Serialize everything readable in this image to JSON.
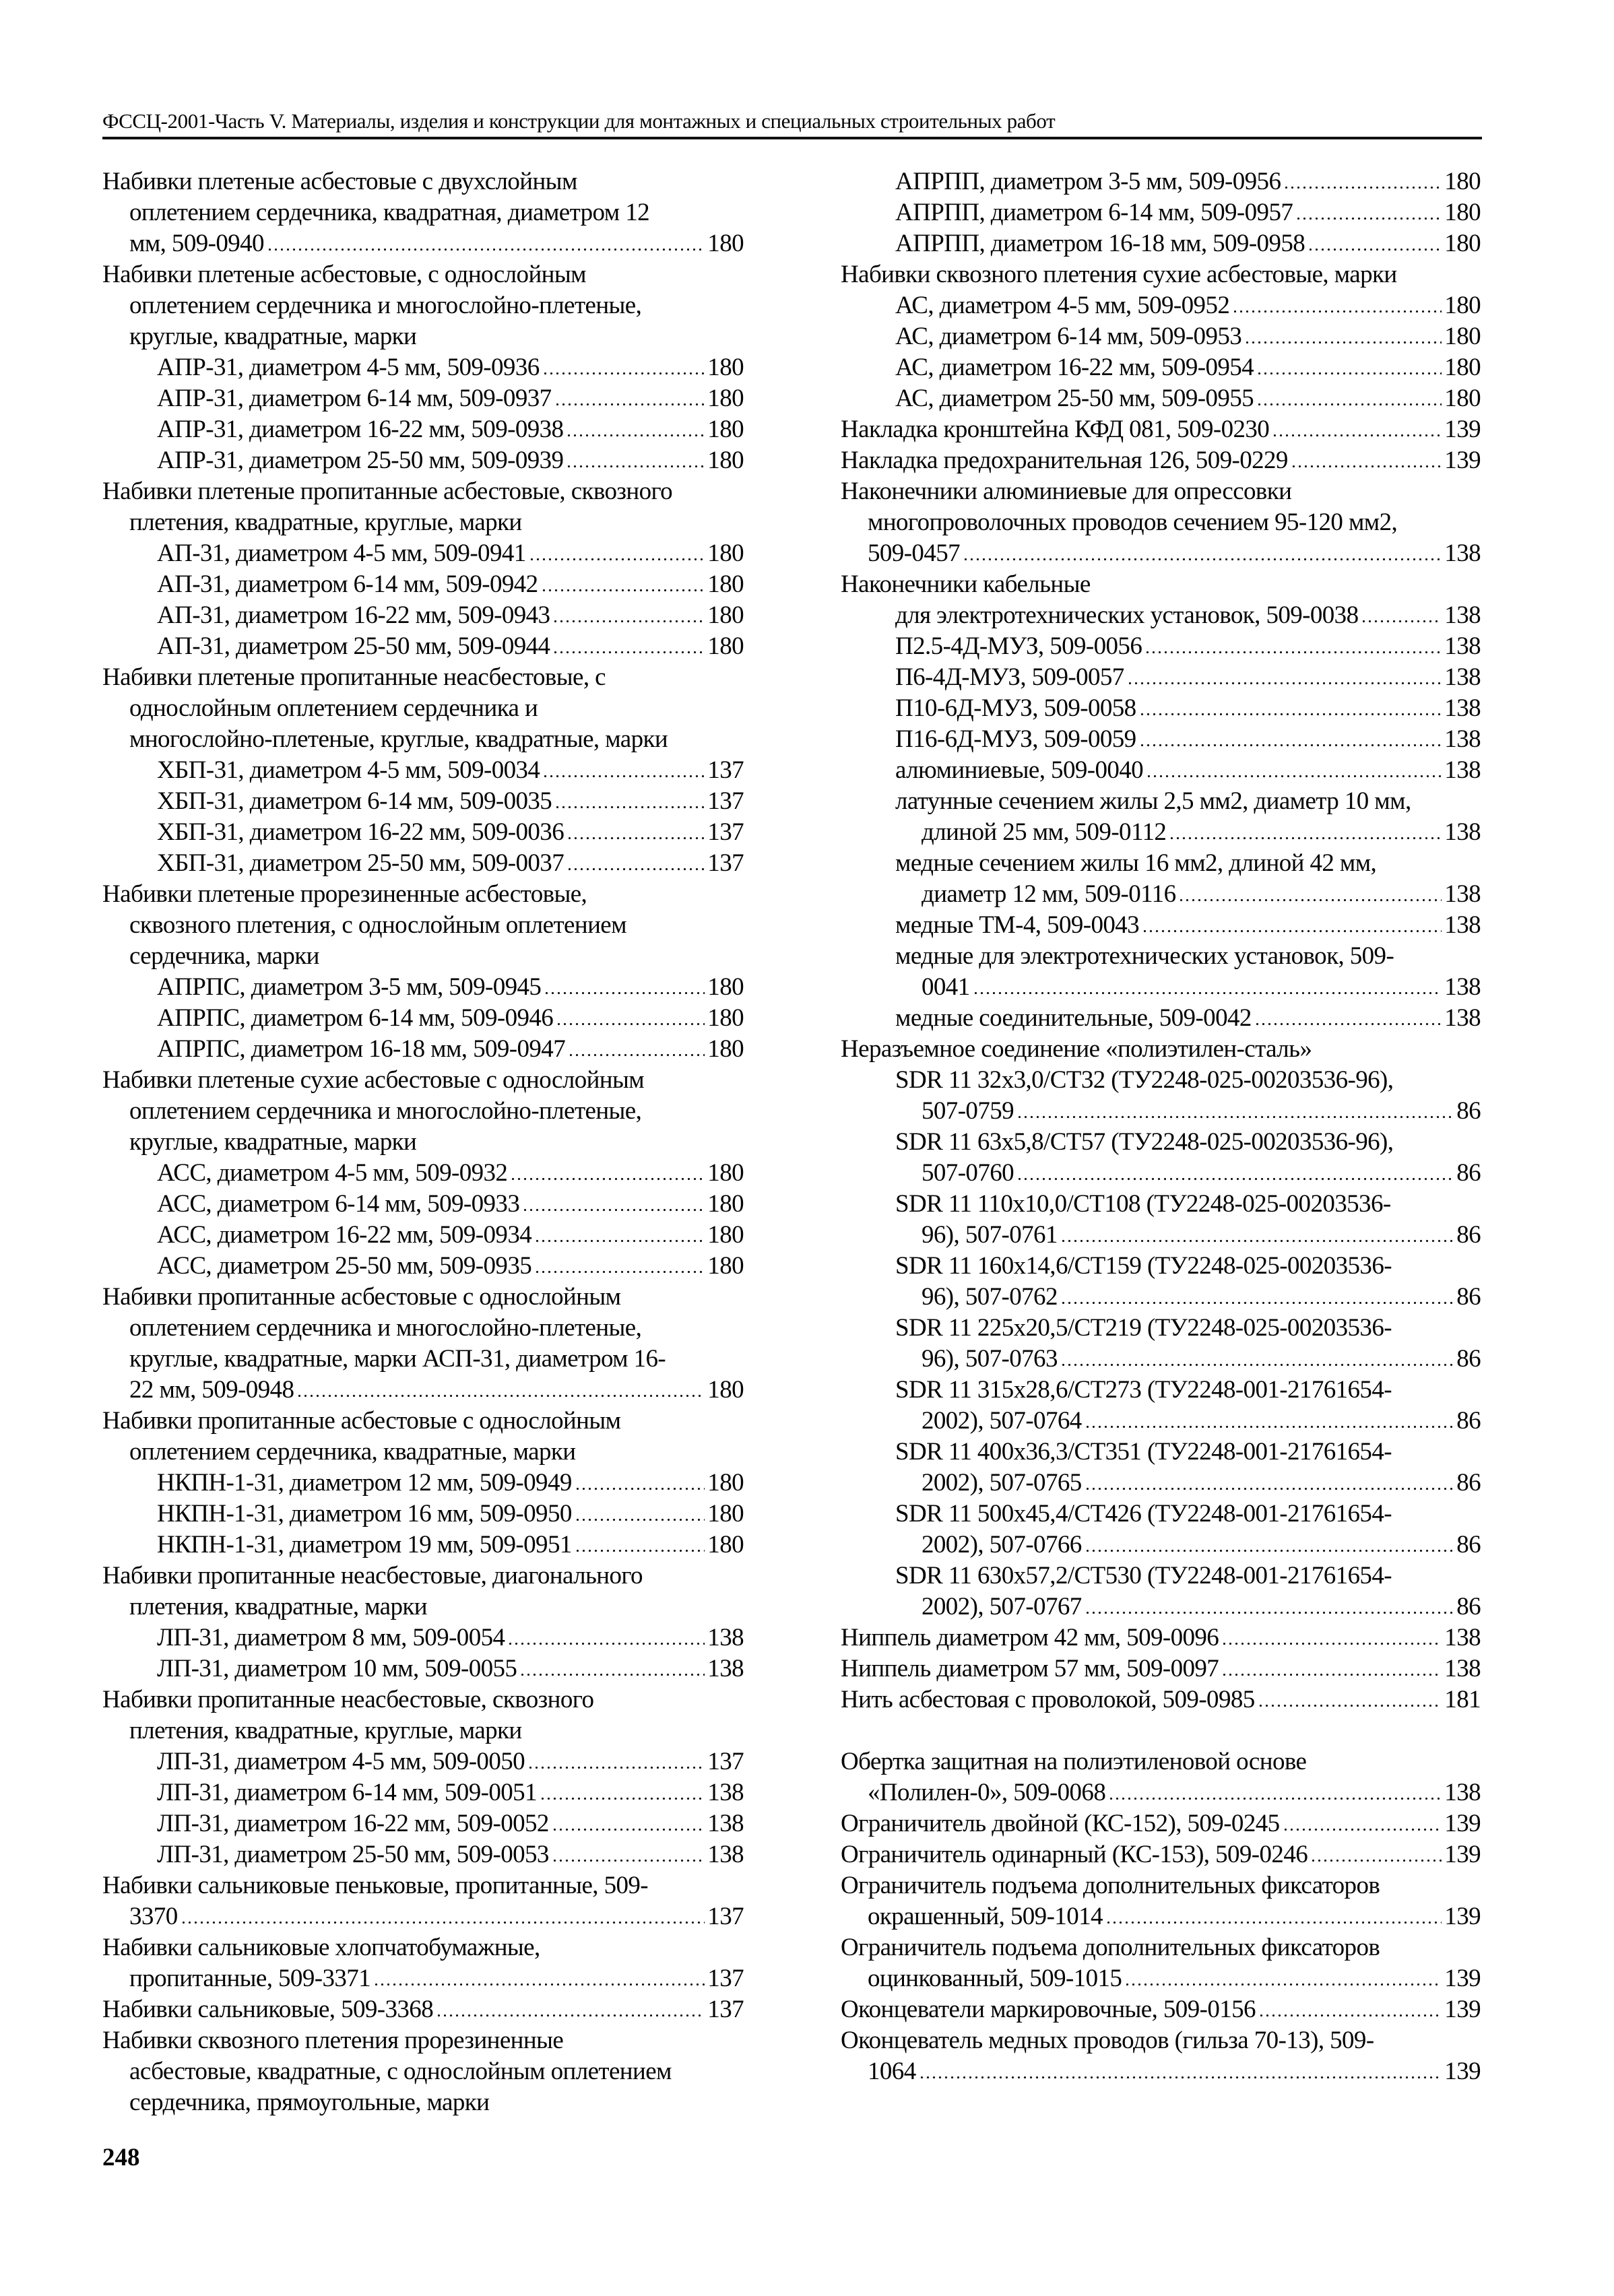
{
  "header": {
    "title": "ФССЦ-2001-Часть V. Материалы, изделия и конструкции для монтажных и специальных строительных работ"
  },
  "page_number": "248",
  "columns": {
    "left": [
      {
        "i": 0,
        "t": "Набивки плетеные асбестовые с двухслойным"
      },
      {
        "i": 1,
        "t": "оплетением сердечника, квадратная, диаметром 12"
      },
      {
        "i": 1,
        "t": "мм, 509-0940",
        "p": "180"
      },
      {
        "i": 0,
        "t": "Набивки плетеные асбестовые, с однослойным"
      },
      {
        "i": 1,
        "t": "оплетением сердечника и многослойно-плетеные,"
      },
      {
        "i": 1,
        "t": "круглые, квадратные, марки"
      },
      {
        "i": 2,
        "t": "АПР-31, диаметром 4-5 мм, 509-0936",
        "p": "180"
      },
      {
        "i": 2,
        "t": "АПР-31, диаметром 6-14 мм, 509-0937",
        "p": "180"
      },
      {
        "i": 2,
        "t": "АПР-31, диаметром 16-22 мм, 509-0938",
        "p": "180"
      },
      {
        "i": 2,
        "t": "АПР-31, диаметром 25-50 мм, 509-0939",
        "p": "180"
      },
      {
        "i": 0,
        "t": "Набивки плетеные пропитанные асбестовые, сквозного"
      },
      {
        "i": 1,
        "t": "плетения, квадратные, круглые, марки"
      },
      {
        "i": 2,
        "t": "АП-31, диаметром 4-5 мм, 509-0941",
        "p": "180"
      },
      {
        "i": 2,
        "t": "АП-31, диаметром 6-14 мм, 509-0942",
        "p": "180"
      },
      {
        "i": 2,
        "t": "АП-31, диаметром 16-22 мм, 509-0943",
        "p": "180"
      },
      {
        "i": 2,
        "t": "АП-31, диаметром 25-50 мм, 509-0944",
        "p": "180"
      },
      {
        "i": 0,
        "t": "Набивки плетеные пропитанные неасбестовые, с"
      },
      {
        "i": 1,
        "t": "однослойным оплетением сердечника и"
      },
      {
        "i": 1,
        "t": "многослойно-плетеные, круглые, квадратные, марки"
      },
      {
        "i": 2,
        "t": "ХБП-31, диаметром 4-5 мм, 509-0034",
        "p": "137"
      },
      {
        "i": 2,
        "t": "ХБП-31, диаметром 6-14 мм, 509-0035",
        "p": "137"
      },
      {
        "i": 2,
        "t": "ХБП-31, диаметром 16-22 мм, 509-0036",
        "p": "137"
      },
      {
        "i": 2,
        "t": "ХБП-31, диаметром 25-50 мм, 509-0037",
        "p": "137"
      },
      {
        "i": 0,
        "t": "Набивки плетеные прорезиненные асбестовые,"
      },
      {
        "i": 1,
        "t": "сквозного плетения, с однослойным оплетением"
      },
      {
        "i": 1,
        "t": "сердечника, марки"
      },
      {
        "i": 2,
        "t": "АПРПС, диаметром 3-5 мм, 509-0945",
        "p": "180"
      },
      {
        "i": 2,
        "t": "АПРПС, диаметром 6-14 мм, 509-0946",
        "p": "180"
      },
      {
        "i": 2,
        "t": "АПРПС, диаметром 16-18 мм, 509-0947",
        "p": "180"
      },
      {
        "i": 0,
        "t": "Набивки плетеные сухие асбестовые с однослойным"
      },
      {
        "i": 1,
        "t": "оплетением сердечника и многослойно-плетеные,"
      },
      {
        "i": 1,
        "t": "круглые, квадратные, марки"
      },
      {
        "i": 2,
        "t": "АСС, диаметром 4-5 мм, 509-0932",
        "p": "180"
      },
      {
        "i": 2,
        "t": "АСС, диаметром 6-14 мм, 509-0933",
        "p": "180"
      },
      {
        "i": 2,
        "t": "АСС, диаметром 16-22 мм, 509-0934",
        "p": "180"
      },
      {
        "i": 2,
        "t": "АСС, диаметром 25-50 мм, 509-0935",
        "p": "180"
      },
      {
        "i": 0,
        "t": "Набивки пропитанные асбестовые с однослойным"
      },
      {
        "i": 1,
        "t": "оплетением сердечника и многослойно-плетеные,"
      },
      {
        "i": 1,
        "t": "круглые, квадратные, марки АСП-31, диаметром 16-"
      },
      {
        "i": 1,
        "t": "22 мм, 509-0948",
        "p": "180"
      },
      {
        "i": 0,
        "t": "Набивки пропитанные асбестовые с однослойным"
      },
      {
        "i": 1,
        "t": "оплетением сердечника, квадратные, марки"
      },
      {
        "i": 2,
        "t": "НКПН-1-31, диаметром 12 мм, 509-0949",
        "p": "180"
      },
      {
        "i": 2,
        "t": "НКПН-1-31, диаметром 16 мм, 509-0950",
        "p": "180"
      },
      {
        "i": 2,
        "t": "НКПН-1-31, диаметром 19 мм, 509-0951",
        "p": "180"
      },
      {
        "i": 0,
        "t": "Набивки пропитанные неасбестовые, диагонального"
      },
      {
        "i": 1,
        "t": "плетения, квадратные, марки"
      },
      {
        "i": 2,
        "t": "ЛП-31, диаметром 8 мм, 509-0054",
        "p": "138"
      },
      {
        "i": 2,
        "t": "ЛП-31, диаметром 10 мм, 509-0055",
        "p": "138"
      },
      {
        "i": 0,
        "t": "Набивки пропитанные неасбестовые, сквозного"
      },
      {
        "i": 1,
        "t": "плетения, квадратные, круглые, марки"
      },
      {
        "i": 2,
        "t": "ЛП-31, диаметром 4-5 мм, 509-0050",
        "p": "137"
      },
      {
        "i": 2,
        "t": "ЛП-31, диаметром 6-14 мм, 509-0051",
        "p": "138"
      },
      {
        "i": 2,
        "t": "ЛП-31, диаметром 16-22 мм, 509-0052",
        "p": "138"
      },
      {
        "i": 2,
        "t": "ЛП-31, диаметром 25-50 мм, 509-0053",
        "p": "138"
      },
      {
        "i": 0,
        "t": "Набивки сальниковые пеньковые, пропитанные, 509-"
      },
      {
        "i": 1,
        "t": "3370",
        "p": "137"
      },
      {
        "i": 0,
        "t": "Набивки сальниковые хлопчатобумажные,"
      },
      {
        "i": 1,
        "t": "пропитанные, 509-3371",
        "p": "137"
      },
      {
        "i": 0,
        "t": "Набивки сальниковые, 509-3368",
        "p": "137"
      },
      {
        "i": 0,
        "t": "Набивки сквозного плетения прорезиненные"
      },
      {
        "i": 1,
        "t": "асбестовые, квадратные, с однослойным оплетением"
      },
      {
        "i": 1,
        "t": "сердечника, прямоугольные, марки"
      }
    ],
    "right": [
      {
        "i": 2,
        "t": "АПРПП, диаметром 3-5 мм, 509-0956",
        "p": "180"
      },
      {
        "i": 2,
        "t": "АПРПП, диаметром 6-14 мм, 509-0957",
        "p": "180"
      },
      {
        "i": 2,
        "t": "АПРПП, диаметром 16-18 мм, 509-0958",
        "p": "180"
      },
      {
        "i": 0,
        "t": "Набивки сквозного плетения сухие асбестовые, марки"
      },
      {
        "i": 2,
        "t": "АС, диаметром 4-5 мм, 509-0952",
        "p": "180"
      },
      {
        "i": 2,
        "t": "АС, диаметром 6-14 мм, 509-0953",
        "p": "180"
      },
      {
        "i": 2,
        "t": "АС, диаметром 16-22 мм, 509-0954",
        "p": "180"
      },
      {
        "i": 2,
        "t": "АС, диаметром 25-50 мм, 509-0955",
        "p": "180"
      },
      {
        "i": 0,
        "t": "Накладка кронштейна КФД 081, 509-0230",
        "p": "139"
      },
      {
        "i": 0,
        "t": "Накладка предохранительная 126, 509-0229",
        "p": "139"
      },
      {
        "i": 0,
        "t": "Наконечники алюминиевые для опрессовки"
      },
      {
        "i": 1,
        "t": "многопроволочных проводов сечением 95-120 мм2,"
      },
      {
        "i": 1,
        "t": "509-0457",
        "p": "138"
      },
      {
        "i": 0,
        "t": "Наконечники кабельные"
      },
      {
        "i": 2,
        "t": "для электротехнических установок, 509-0038",
        "p": "138"
      },
      {
        "i": 2,
        "t": "П2.5-4Д-МУЗ, 509-0056",
        "p": "138"
      },
      {
        "i": 2,
        "t": "П6-4Д-МУЗ, 509-0057",
        "p": "138"
      },
      {
        "i": 2,
        "t": "П10-6Д-МУЗ, 509-0058",
        "p": "138"
      },
      {
        "i": 2,
        "t": "П16-6Д-МУЗ, 509-0059",
        "p": "138"
      },
      {
        "i": 2,
        "t": "алюминиевые, 509-0040",
        "p": "138"
      },
      {
        "i": 2,
        "t": "латунные сечением жилы 2,5 мм2, диаметр 10 мм,"
      },
      {
        "i": 3,
        "t": "длиной 25 мм, 509-0112",
        "p": "138"
      },
      {
        "i": 2,
        "t": "медные сечением жилы 16 мм2, длиной 42 мм,"
      },
      {
        "i": 3,
        "t": "диаметр 12 мм, 509-0116",
        "p": "138"
      },
      {
        "i": 2,
        "t": "медные ТМ-4, 509-0043",
        "p": "138"
      },
      {
        "i": 2,
        "t": "медные для электротехнических установок, 509-"
      },
      {
        "i": 3,
        "t": "0041",
        "p": "138"
      },
      {
        "i": 2,
        "t": "медные соединительные, 509-0042",
        "p": "138"
      },
      {
        "i": 0,
        "t": "Неразъемное соединение «полиэтилен-сталь»"
      },
      {
        "i": 2,
        "t": "SDR 11 32x3,0/CT32 (ТУ2248-025-00203536-96),"
      },
      {
        "i": 3,
        "t": "507-0759",
        "p": "86"
      },
      {
        "i": 2,
        "t": "SDR 11 63x5,8/CT57 (ТУ2248-025-00203536-96),"
      },
      {
        "i": 3,
        "t": "507-0760",
        "p": "86"
      },
      {
        "i": 2,
        "t": "SDR 11 110x10,0/CT108 (ТУ2248-025-00203536-"
      },
      {
        "i": 3,
        "t": "96), 507-0761",
        "p": "86"
      },
      {
        "i": 2,
        "t": "SDR 11 160x14,6/CT159 (ТУ2248-025-00203536-"
      },
      {
        "i": 3,
        "t": "96), 507-0762",
        "p": "86"
      },
      {
        "i": 2,
        "t": "SDR 11 225x20,5/CT219 (ТУ2248-025-00203536-"
      },
      {
        "i": 3,
        "t": "96), 507-0763",
        "p": "86"
      },
      {
        "i": 2,
        "t": "SDR 11 315x28,6/CT273 (ТУ2248-001-21761654-"
      },
      {
        "i": 3,
        "t": "2002), 507-0764",
        "p": "86"
      },
      {
        "i": 2,
        "t": "SDR 11 400x36,3/CT351 (ТУ2248-001-21761654-"
      },
      {
        "i": 3,
        "t": "2002), 507-0765",
        "p": "86"
      },
      {
        "i": 2,
        "t": "SDR 11 500x45,4/CT426 (ТУ2248-001-21761654-"
      },
      {
        "i": 3,
        "t": "2002), 507-0766",
        "p": "86"
      },
      {
        "i": 2,
        "t": "SDR 11 630x57,2/CT530 (ТУ2248-001-21761654-"
      },
      {
        "i": 3,
        "t": "2002), 507-0767",
        "p": "86"
      },
      {
        "i": 0,
        "t": "Ниппель диаметром 42 мм, 509-0096",
        "p": "138"
      },
      {
        "i": 0,
        "t": "Ниппель диаметром 57 мм, 509-0097",
        "p": "138"
      },
      {
        "i": 0,
        "t": "Нить асбестовая с проволокой, 509-0985",
        "p": "181"
      },
      {
        "i": 0,
        "t": ""
      },
      {
        "i": 0,
        "t": "Обертка защитная на полиэтиленовой основе"
      },
      {
        "i": 1,
        "t": "«Полилен-0», 509-0068",
        "p": "138"
      },
      {
        "i": 0,
        "t": "Ограничитель двойной (КС-152), 509-0245",
        "p": "139"
      },
      {
        "i": 0,
        "t": "Ограничитель одинарный (КС-153), 509-0246",
        "p": "139"
      },
      {
        "i": 0,
        "t": "Ограничитель подъема дополнительных фиксаторов"
      },
      {
        "i": 1,
        "t": "окрашенный, 509-1014",
        "p": "139"
      },
      {
        "i": 0,
        "t": "Ограничитель подъема дополнительных фиксаторов"
      },
      {
        "i": 1,
        "t": "оцинкованный, 509-1015",
        "p": "139"
      },
      {
        "i": 0,
        "t": "Оконцеватели маркировочные, 509-0156",
        "p": "139"
      },
      {
        "i": 0,
        "t": "Оконцеватель медных проводов (гильза 70-13), 509-"
      },
      {
        "i": 1,
        "t": "1064",
        "p": "139"
      }
    ]
  }
}
